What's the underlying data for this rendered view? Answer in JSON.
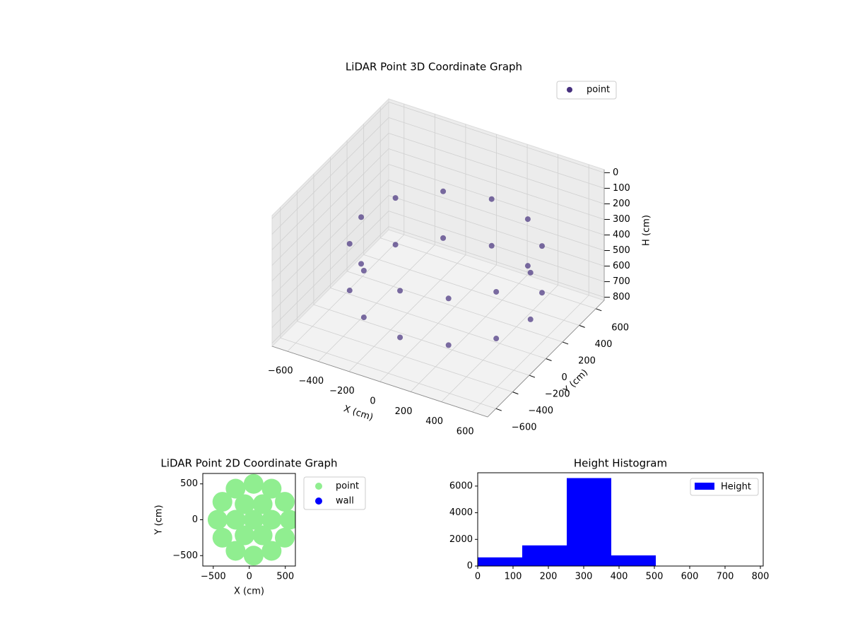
{
  "chart_data": [
    {
      "type": "scatter3d",
      "title": "LiDAR Point 3D Coordinate Graph",
      "xlabel": "X (cm)",
      "ylabel": "Y (cm)",
      "zlabel": "H (cm)",
      "xlim": [
        -700,
        700
      ],
      "ylim": [
        -700,
        700
      ],
      "zlim": [
        -20,
        820
      ],
      "z_inverted": true,
      "xticks": [
        {
          "value": -600,
          "label": "−600"
        },
        {
          "value": -400,
          "label": "−400"
        },
        {
          "value": -200,
          "label": "−200"
        },
        0,
        200,
        400,
        600
      ],
      "yticks": [
        {
          "value": -600,
          "label": "−600"
        },
        {
          "value": -400,
          "label": "−400"
        },
        {
          "value": -200,
          "label": "−200"
        },
        0,
        200,
        400,
        600
      ],
      "zticks": [
        0,
        100,
        200,
        300,
        400,
        500,
        600,
        700,
        800
      ],
      "grid": true,
      "legend": "upper right",
      "series": [
        {
          "name": "point",
          "color": "#46307e",
          "x": [
            600,
            526,
            325,
            50,
            -225,
            -426,
            -500,
            -426,
            -225,
            50,
            325,
            526,
            600,
            526,
            325,
            50,
            -225,
            -426,
            -500,
            -426,
            -225,
            50,
            325,
            526
          ],
          "y": [
            0,
            275,
            476,
            550,
            476,
            275,
            0,
            -275,
            -476,
            -550,
            -476,
            -275,
            0,
            275,
            476,
            550,
            476,
            275,
            0,
            -275,
            -476,
            -550,
            -476,
            -275
          ],
          "z": [
            300,
            300,
            300,
            300,
            300,
            300,
            300,
            300,
            300,
            300,
            300,
            300,
            600,
            600,
            600,
            600,
            600,
            600,
            600,
            600,
            600,
            600,
            600,
            600
          ]
        }
      ]
    },
    {
      "type": "scatter",
      "title": "LiDAR Point 2D Coordinate Graph",
      "xlabel": "X (cm)",
      "ylabel": "Y (cm)",
      "xlim": [
        -645,
        640
      ],
      "ylim": [
        -645,
        645
      ],
      "xticks": [
        {
          "value": -500,
          "label": "−500"
        },
        0,
        500
      ],
      "yticks": [
        {
          "value": -500,
          "label": "−500"
        },
        0,
        500
      ],
      "legend": "outside right",
      "series": [
        {
          "name": "point",
          "color": "#90ee90",
          "x": [
            560,
            493,
            310,
            60,
            -190,
            -373,
            -440,
            -373,
            -190,
            60,
            310,
            493,
            310,
            185,
            -65,
            -190,
            -65,
            185,
            60
          ],
          "y": [
            0,
            250,
            433,
            500,
            433,
            250,
            0,
            -250,
            -433,
            -500,
            -433,
            -250,
            0,
            217,
            217,
            0,
            -217,
            -217,
            0
          ]
        },
        {
          "name": "wall",
          "color": "#0000ff",
          "x": [],
          "y": []
        }
      ]
    },
    {
      "type": "histogram",
      "title": "Height Histogram",
      "bins": [
        0,
        126,
        252,
        378,
        504,
        630,
        756
      ],
      "counts": [
        650,
        1550,
        6600,
        800,
        0,
        0
      ],
      "series_name": "Height",
      "color": "#0000ff",
      "xlim": [
        0,
        808
      ],
      "ylim": [
        0,
        7000
      ],
      "xticks": [
        0,
        100,
        200,
        300,
        400,
        500,
        600,
        700,
        800
      ],
      "yticks": [
        0,
        2000,
        4000,
        6000
      ],
      "legend": "upper right"
    }
  ]
}
